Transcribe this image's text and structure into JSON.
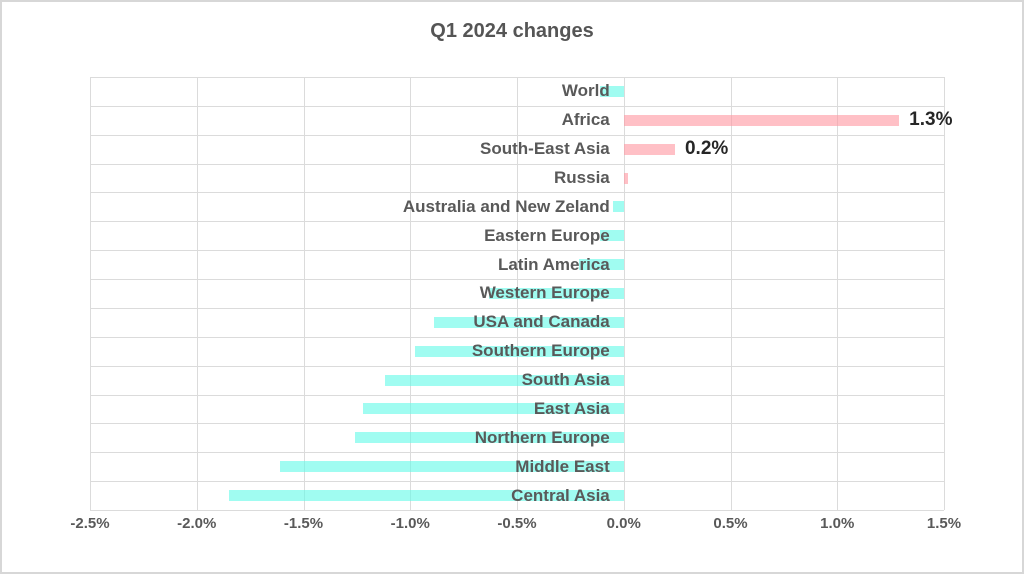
{
  "window": {
    "background_color": "#ffffff",
    "frame_border_color": "#d7d7d7"
  },
  "chart_data": {
    "type": "bar",
    "orientation": "horizontal",
    "title": "Q1 2024 changes",
    "unit": "%",
    "xlim": [
      -2.5,
      1.5
    ],
    "grid": true,
    "x_ticks": [
      "-2.5%",
      "-2.0%",
      "-1.5%",
      "-1.0%",
      "-0.5%",
      "0.0%",
      "0.5%",
      "1.0%",
      "1.5%"
    ],
    "x_tick_values": [
      -2.5,
      -2.0,
      -1.5,
      -1.0,
      -0.5,
      0.0,
      0.5,
      1.0,
      1.5
    ],
    "categories": [
      "World",
      "Africa",
      "South-East Asia",
      "Russia",
      "Australia and New Zeland",
      "Eastern Europe",
      "Latin America",
      "Western Europe",
      "USA and Canada",
      "Southern Europe",
      "South Asia",
      "East Asia",
      "Northern Europe",
      "Middle East",
      "Central Asia"
    ],
    "values": [
      -0.11,
      1.29,
      0.24,
      0.02,
      -0.05,
      -0.11,
      -0.21,
      -0.63,
      -0.89,
      -0.98,
      -1.12,
      -1.22,
      -1.26,
      -1.61,
      -1.85
    ],
    "points": [
      {
        "category": "World",
        "value": -0.11,
        "data_label": null
      },
      {
        "category": "Africa",
        "value": 1.29,
        "data_label": "1.3%"
      },
      {
        "category": "South-East Asia",
        "value": 0.24,
        "data_label": "0.2%"
      },
      {
        "category": "Russia",
        "value": 0.02,
        "data_label": null
      },
      {
        "category": "Australia and New Zeland",
        "value": -0.05,
        "data_label": null
      },
      {
        "category": "Eastern Europe",
        "value": -0.11,
        "data_label": null
      },
      {
        "category": "Latin America",
        "value": -0.21,
        "data_label": null
      },
      {
        "category": "Western Europe",
        "value": -0.63,
        "data_label": null
      },
      {
        "category": "USA and Canada",
        "value": -0.89,
        "data_label": null
      },
      {
        "category": "Southern Europe",
        "value": -0.98,
        "data_label": null
      },
      {
        "category": "South Asia",
        "value": -1.12,
        "data_label": null
      },
      {
        "category": "East Asia",
        "value": -1.22,
        "data_label": null
      },
      {
        "category": "Northern Europe",
        "value": -1.26,
        "data_label": null
      },
      {
        "category": "Middle East",
        "value": -1.61,
        "data_label": null
      },
      {
        "category": "Central Asia",
        "value": -1.85,
        "data_label": null
      }
    ],
    "colors": {
      "positive_bar_fill": "rgba(255,150,160,0.6)",
      "positive_bar_hex_on_white": "#ffc0c6",
      "negative_bar_fill": "rgba(97,250,232,0.6)",
      "negative_bar_hex_on_white": "#a0fcf1",
      "gridline": "#dbdbdb",
      "title_text": "#555555",
      "category_text": "#595959",
      "tick_text": "#595959",
      "data_label_text": "#262626"
    },
    "legend": null
  }
}
